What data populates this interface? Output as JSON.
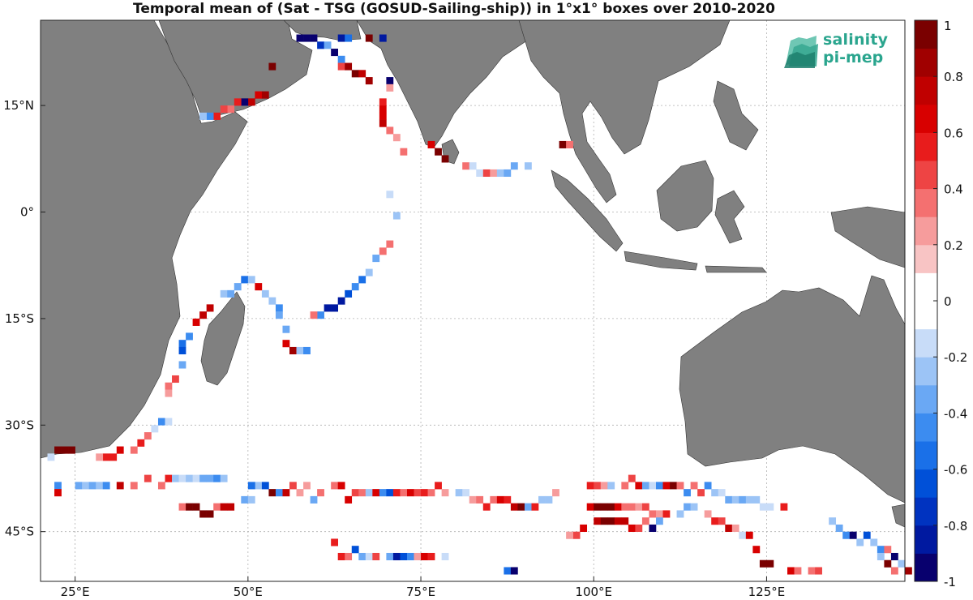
{
  "title": "Temporal mean of (Sat - TSG (GOSUD-Sailing-ship)) in 1°x1° boxes over 2010-2020",
  "logo": {
    "line1": "salinity",
    "line2": "pi-mep"
  },
  "colors": {
    "land": "#808080",
    "ocean": "#ffffff",
    "grid": "#b0b0b0"
  },
  "chart_data": {
    "type": "heatmap",
    "title": "Temporal mean of (Sat - TSG (GOSUD-Sailing-ship)) in 1°x1° boxes over 2010-2020",
    "xlim": [
      20,
      145
    ],
    "ylim": [
      -52,
      27
    ],
    "grid": true,
    "xticks": [
      {
        "value": 25,
        "label": "25°E"
      },
      {
        "value": 50,
        "label": "50°E"
      },
      {
        "value": 75,
        "label": "75°E"
      },
      {
        "value": 100,
        "label": "100°E"
      },
      {
        "value": 125,
        "label": "125°E"
      }
    ],
    "yticks": [
      {
        "value": 15,
        "label": "15°N"
      },
      {
        "value": 0,
        "label": "0°"
      },
      {
        "value": -15,
        "label": "15°S"
      },
      {
        "value": -30,
        "label": "30°S"
      },
      {
        "value": -45,
        "label": "45°S"
      }
    ],
    "colorbar": {
      "range": [
        -1,
        1
      ],
      "ticks": [
        {
          "value": 1,
          "label": "1"
        },
        {
          "value": 0.8,
          "label": "0.8"
        },
        {
          "value": 0.6,
          "label": "0.6"
        },
        {
          "value": 0.4,
          "label": "0.4"
        },
        {
          "value": 0.2,
          "label": "0.2"
        },
        {
          "value": 0,
          "label": "0"
        },
        {
          "value": -0.2,
          "label": "-0.2"
        },
        {
          "value": -0.4,
          "label": "-0.4"
        },
        {
          "value": -0.6,
          "label": "-0.6"
        },
        {
          "value": -0.8,
          "label": "-0.8"
        },
        {
          "value": -1,
          "label": "-1"
        }
      ],
      "levels": [
        "#08006e",
        "#0019a0",
        "#0033c0",
        "#0050d8",
        "#1a70e8",
        "#3c8cf0",
        "#6aa8f4",
        "#9cc4f6",
        "#c8dcf8",
        "#ffffff",
        "#ffffff",
        "#f8c4c4",
        "#f69c9c",
        "#f47070",
        "#ee4444",
        "#e81c1c",
        "#d80000",
        "#c00000",
        "#a00000",
        "#7a0000"
      ]
    },
    "cells": [
      [
        57,
        24,
        -0.95
      ],
      [
        58,
        24,
        -0.95
      ],
      [
        59,
        24,
        -0.9
      ],
      [
        60,
        23,
        -0.75
      ],
      [
        61,
        23,
        -0.4
      ],
      [
        62,
        22,
        -0.9
      ],
      [
        63,
        21,
        -0.5
      ],
      [
        63,
        20,
        0.4
      ],
      [
        64,
        20,
        0.8
      ],
      [
        65,
        19,
        0.9
      ],
      [
        66,
        19,
        0.7
      ],
      [
        67,
        18,
        0.8
      ],
      [
        69,
        24,
        -0.8
      ],
      [
        70,
        18,
        -0.9
      ],
      [
        70,
        17,
        0.2
      ],
      [
        63,
        24,
        -0.8
      ],
      [
        64,
        24,
        -0.6
      ],
      [
        67,
        24,
        0.95
      ],
      [
        53,
        20,
        0.95
      ],
      [
        50,
        15,
        0.7
      ],
      [
        51,
        16,
        0.6
      ],
      [
        52,
        16,
        0.8
      ],
      [
        49,
        15,
        -0.9
      ],
      [
        48,
        15,
        0.5
      ],
      [
        47,
        14,
        0.3
      ],
      [
        46,
        14,
        0.4
      ],
      [
        45,
        13,
        0.5
      ],
      [
        44,
        13,
        -0.5
      ],
      [
        43,
        13,
        -0.3
      ],
      [
        69,
        15,
        0.5
      ],
      [
        69,
        14,
        0.6
      ],
      [
        69,
        13,
        0.6
      ],
      [
        69,
        12,
        0.7
      ],
      [
        70,
        11,
        0.3
      ],
      [
        71,
        10,
        0.2
      ],
      [
        72,
        8,
        0.3
      ],
      [
        76,
        9,
        0.6
      ],
      [
        77,
        8,
        0.95
      ],
      [
        78,
        7,
        0.9
      ],
      [
        81,
        6,
        0.3
      ],
      [
        82,
        6,
        -0.15
      ],
      [
        83,
        5,
        -0.2
      ],
      [
        84,
        5,
        0.4
      ],
      [
        85,
        5,
        0.2
      ],
      [
        86,
        5,
        -0.3
      ],
      [
        87,
        5,
        -0.4
      ],
      [
        88,
        6,
        -0.35
      ],
      [
        90,
        6,
        -0.3
      ],
      [
        95,
        9,
        0.9
      ],
      [
        96,
        9,
        0.3
      ],
      [
        70,
        2,
        -0.15
      ],
      [
        71,
        -1,
        -0.3
      ],
      [
        70,
        -5,
        0.3
      ],
      [
        69,
        -6,
        0.3
      ],
      [
        68,
        -7,
        -0.4
      ],
      [
        67,
        -9,
        -0.3
      ],
      [
        66,
        -10,
        -0.6
      ],
      [
        65,
        -11,
        -0.5
      ],
      [
        64,
        -12,
        -0.7
      ],
      [
        63,
        -13,
        -0.8
      ],
      [
        62,
        -14,
        -0.85
      ],
      [
        61,
        -14,
        -0.85
      ],
      [
        60,
        -15,
        -0.5
      ],
      [
        59,
        -15,
        0.3
      ],
      [
        46,
        -12,
        -0.3
      ],
      [
        47,
        -12,
        -0.4
      ],
      [
        48,
        -11,
        -0.4
      ],
      [
        49,
        -10,
        -0.6
      ],
      [
        50,
        -10,
        -0.3
      ],
      [
        51,
        -11,
        0.6
      ],
      [
        52,
        -12,
        -0.3
      ],
      [
        53,
        -13,
        -0.3
      ],
      [
        54,
        -14,
        -0.5
      ],
      [
        54,
        -15,
        -0.4
      ],
      [
        55,
        -17,
        -0.4
      ],
      [
        55,
        -19,
        0.6
      ],
      [
        56,
        -20,
        0.8
      ],
      [
        57,
        -20,
        -0.3
      ],
      [
        58,
        -20,
        -0.5
      ],
      [
        44,
        -14,
        0.7
      ],
      [
        43,
        -15,
        0.7
      ],
      [
        42,
        -16,
        0.6
      ],
      [
        41,
        -18,
        -0.5
      ],
      [
        40,
        -19,
        -0.6
      ],
      [
        40,
        -20,
        -0.7
      ],
      [
        40,
        -22,
        -0.4
      ],
      [
        39,
        -24,
        0.4
      ],
      [
        38,
        -25,
        0.3
      ],
      [
        38,
        -26,
        0.2
      ],
      [
        37,
        -30,
        -0.5
      ],
      [
        38,
        -30,
        -0.2
      ],
      [
        36,
        -31,
        -0.2
      ],
      [
        35,
        -32,
        0.3
      ],
      [
        34,
        -33,
        0.5
      ],
      [
        33,
        -34,
        0.3
      ],
      [
        31,
        -34,
        0.6
      ],
      [
        30,
        -35,
        0.5
      ],
      [
        29,
        -35,
        0.5
      ],
      [
        28,
        -35,
        0.2
      ],
      [
        22,
        -34,
        0.95
      ],
      [
        23,
        -34,
        0.95
      ],
      [
        24,
        -34,
        0.95
      ],
      [
        21,
        -35,
        -0.2
      ],
      [
        22,
        -39,
        -0.5
      ],
      [
        22,
        -40,
        0.6
      ],
      [
        25,
        -39,
        -0.4
      ],
      [
        26,
        -39,
        -0.3
      ],
      [
        27,
        -39,
        -0.4
      ],
      [
        28,
        -39,
        -0.3
      ],
      [
        29,
        -39,
        -0.5
      ],
      [
        31,
        -39,
        0.7
      ],
      [
        33,
        -39,
        0.3
      ],
      [
        35,
        -38,
        0.4
      ],
      [
        37,
        -39,
        0.3
      ],
      [
        38,
        -38,
        0.5
      ],
      [
        39,
        -38,
        -0.3
      ],
      [
        40,
        -38,
        -0.2
      ],
      [
        41,
        -38,
        -0.3
      ],
      [
        42,
        -38,
        -0.2
      ],
      [
        43,
        -38,
        -0.4
      ],
      [
        44,
        -38,
        -0.4
      ],
      [
        45,
        -38,
        -0.5
      ],
      [
        46,
        -38,
        -0.3
      ],
      [
        40,
        -42,
        0.3
      ],
      [
        41,
        -42,
        0.9
      ],
      [
        42,
        -42,
        0.9
      ],
      [
        43,
        -43,
        0.95
      ],
      [
        44,
        -43,
        0.9
      ],
      [
        45,
        -42,
        0.3
      ],
      [
        46,
        -42,
        0.7
      ],
      [
        47,
        -42,
        0.7
      ],
      [
        49,
        -41,
        -0.4
      ],
      [
        50,
        -41,
        -0.3
      ],
      [
        51,
        -39,
        -0.3
      ],
      [
        50,
        -39,
        -0.6
      ],
      [
        52,
        -39,
        -0.7
      ],
      [
        53,
        -40,
        0.9
      ],
      [
        54,
        -40,
        -0.5
      ],
      [
        55,
        -40,
        0.7
      ],
      [
        56,
        -39,
        0.4
      ],
      [
        57,
        -40,
        0.2
      ],
      [
        58,
        -39,
        0.2
      ],
      [
        59,
        -41,
        -0.4
      ],
      [
        60,
        -40,
        0.3
      ],
      [
        62,
        -39,
        0.3
      ],
      [
        63,
        -39,
        0.6
      ],
      [
        64,
        -41,
        0.6
      ],
      [
        65,
        -40,
        0.4
      ],
      [
        66,
        -40,
        0.3
      ],
      [
        67,
        -40,
        -0.3
      ],
      [
        68,
        -40,
        0.6
      ],
      [
        69,
        -40,
        -0.5
      ],
      [
        70,
        -40,
        -0.7
      ],
      [
        71,
        -40,
        0.5
      ],
      [
        72,
        -40,
        0.3
      ],
      [
        73,
        -40,
        0.6
      ],
      [
        74,
        -40,
        0.4
      ],
      [
        75,
        -40,
        0.5
      ],
      [
        76,
        -40,
        0.3
      ],
      [
        77,
        -39,
        0.5
      ],
      [
        78,
        -40,
        0.2
      ],
      [
        80,
        -40,
        -0.3
      ],
      [
        81,
        -40,
        -0.2
      ],
      [
        82,
        -41,
        0.2
      ],
      [
        83,
        -41,
        0.3
      ],
      [
        84,
        -42,
        0.5
      ],
      [
        85,
        -41,
        0.3
      ],
      [
        86,
        -41,
        0.6
      ],
      [
        87,
        -41,
        0.5
      ],
      [
        88,
        -42,
        0.7
      ],
      [
        89,
        -42,
        0.9
      ],
      [
        90,
        -42,
        -0.4
      ],
      [
        91,
        -42,
        0.5
      ],
      [
        92,
        -41,
        -0.3
      ],
      [
        93,
        -41,
        -0.3
      ],
      [
        94,
        -40,
        0.2
      ],
      [
        99,
        -39,
        0.5
      ],
      [
        100,
        -39,
        0.4
      ],
      [
        101,
        -39,
        0.2
      ],
      [
        102,
        -39,
        -0.3
      ],
      [
        104,
        -39,
        0.3
      ],
      [
        105,
        -38,
        0.4
      ],
      [
        106,
        -39,
        0.6
      ],
      [
        107,
        -39,
        -0.4
      ],
      [
        108,
        -39,
        -0.2
      ],
      [
        109,
        -39,
        -0.5
      ],
      [
        110,
        -39,
        0.6
      ],
      [
        111,
        -39,
        0.9
      ],
      [
        112,
        -39,
        0.3
      ],
      [
        113,
        -40,
        -0.5
      ],
      [
        114,
        -39,
        0.3
      ],
      [
        115,
        -40,
        0.4
      ],
      [
        116,
        -39,
        -0.5
      ],
      [
        117,
        -40,
        -0.3
      ],
      [
        118,
        -40,
        -0.2
      ],
      [
        119,
        -41,
        -0.4
      ],
      [
        120,
        -41,
        -0.3
      ],
      [
        121,
        -41,
        -0.4
      ],
      [
        122,
        -41,
        -0.3
      ],
      [
        123,
        -41,
        -0.3
      ],
      [
        124,
        -42,
        -0.2
      ],
      [
        125,
        -42,
        -0.2
      ],
      [
        127,
        -42,
        0.5
      ],
      [
        99,
        -42,
        0.6
      ],
      [
        100,
        -42,
        0.9
      ],
      [
        101,
        -42,
        0.9
      ],
      [
        102,
        -42,
        0.9
      ],
      [
        103,
        -42,
        0.6
      ],
      [
        104,
        -42,
        0.3
      ],
      [
        105,
        -42,
        0.3
      ],
      [
        106,
        -42,
        0.2
      ],
      [
        107,
        -42,
        0.4
      ],
      [
        108,
        -43,
        0.3
      ],
      [
        109,
        -43,
        0.2
      ],
      [
        110,
        -43,
        0.5
      ],
      [
        112,
        -43,
        -0.3
      ],
      [
        113,
        -42,
        -0.4
      ],
      [
        114,
        -42,
        -0.3
      ],
      [
        116,
        -43,
        0.2
      ],
      [
        117,
        -44,
        0.5
      ],
      [
        118,
        -44,
        0.4
      ],
      [
        119,
        -45,
        0.7
      ],
      [
        120,
        -45,
        0.2
      ],
      [
        121,
        -46,
        -0.2
      ],
      [
        122,
        -46,
        0.6
      ],
      [
        123,
        -48,
        0.6
      ],
      [
        124,
        -50,
        0.9
      ],
      [
        125,
        -50,
        0.95
      ],
      [
        100,
        -44,
        0.7
      ],
      [
        101,
        -44,
        0.9
      ],
      [
        102,
        -44,
        0.9
      ],
      [
        103,
        -44,
        0.7
      ],
      [
        104,
        -44,
        0.7
      ],
      [
        105,
        -45,
        0.6
      ],
      [
        106,
        -45,
        0.4
      ],
      [
        107,
        -44,
        0.3
      ],
      [
        108,
        -45,
        -0.9
      ],
      [
        109,
        -44,
        -0.4
      ],
      [
        98,
        -45,
        0.6
      ],
      [
        97,
        -46,
        0.4
      ],
      [
        96,
        -46,
        0.2
      ],
      [
        128,
        -51,
        0.6
      ],
      [
        129,
        -51,
        0.3
      ],
      [
        131,
        -51,
        0.3
      ],
      [
        132,
        -51,
        0.4
      ],
      [
        134,
        -44,
        -0.3
      ],
      [
        135,
        -45,
        -0.4
      ],
      [
        136,
        -46,
        -0.5
      ],
      [
        137,
        -46,
        -0.9
      ],
      [
        138,
        -47,
        -0.3
      ],
      [
        139,
        -46,
        -0.7
      ],
      [
        140,
        -47,
        -0.3
      ],
      [
        141,
        -48,
        -0.5
      ],
      [
        142,
        -48,
        0.3
      ],
      [
        143,
        -49,
        -0.9
      ],
      [
        144,
        -50,
        -0.3
      ],
      [
        145,
        -51,
        0.8
      ],
      [
        143,
        -51,
        0.3
      ],
      [
        142,
        -50,
        0.95
      ],
      [
        141,
        -49,
        -0.3
      ],
      [
        63,
        -49,
        0.5
      ],
      [
        64,
        -49,
        0.3
      ],
      [
        65,
        -48,
        -0.7
      ],
      [
        66,
        -49,
        -0.4
      ],
      [
        67,
        -49,
        -0.2
      ],
      [
        68,
        -49,
        0.4
      ],
      [
        70,
        -49,
        -0.4
      ],
      [
        71,
        -49,
        -0.8
      ],
      [
        72,
        -49,
        -0.7
      ],
      [
        73,
        -49,
        -0.5
      ],
      [
        74,
        -49,
        0.2
      ],
      [
        75,
        -49,
        0.6
      ],
      [
        76,
        -49,
        0.5
      ],
      [
        78,
        -49,
        -0.15
      ],
      [
        87,
        -51,
        -0.6
      ],
      [
        88,
        -51,
        -0.9
      ],
      [
        62,
        -47,
        0.5
      ]
    ]
  }
}
